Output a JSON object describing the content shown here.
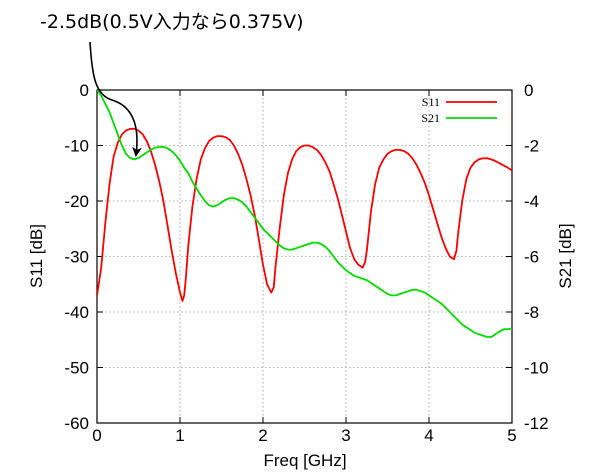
{
  "chart_data": {
    "type": "line",
    "annotation": "-2.5dB(0.5V入力なら0.375V)",
    "xlabel": "Freq [GHz]",
    "ylabel_left": "S11 [dB]",
    "ylabel_right": "S21 [dB]",
    "xlim": [
      0,
      5
    ],
    "ylim_left": [
      -60,
      0
    ],
    "ylim_right": [
      -12,
      0
    ],
    "x_ticks": [
      "0",
      "1",
      "2",
      "3",
      "4",
      "5"
    ],
    "y_ticks_left": [
      "0",
      "-10",
      "-20",
      "-30",
      "-40",
      "-50",
      "-60"
    ],
    "y_ticks_right": [
      "0",
      "-2",
      "-4",
      "-6",
      "-8",
      "-10",
      "-12"
    ],
    "grid": true,
    "legend": "top-right",
    "colors": {
      "S11": "#ff0000",
      "S21": "#00dd00"
    },
    "series": [
      {
        "name": "S11",
        "axis": "left",
        "x": [
          0,
          0.05,
          0.1,
          0.15,
          0.2,
          0.25,
          0.3,
          0.35,
          0.4,
          0.45,
          0.5,
          0.55,
          0.6,
          0.65,
          0.7,
          0.75,
          0.8,
          0.85,
          0.9,
          0.95,
          1.0,
          1.03,
          1.05,
          1.07,
          1.1,
          1.15,
          1.2,
          1.25,
          1.3,
          1.35,
          1.4,
          1.45,
          1.5,
          1.55,
          1.6,
          1.65,
          1.7,
          1.75,
          1.8,
          1.85,
          1.9,
          1.95,
          2.0,
          2.05,
          2.1,
          2.13,
          2.15,
          2.2,
          2.25,
          2.3,
          2.35,
          2.4,
          2.45,
          2.5,
          2.55,
          2.6,
          2.65,
          2.7,
          2.75,
          2.8,
          2.85,
          2.9,
          2.95,
          3.0,
          3.05,
          3.1,
          3.15,
          3.2,
          3.23,
          3.25,
          3.3,
          3.35,
          3.4,
          3.45,
          3.5,
          3.55,
          3.6,
          3.65,
          3.7,
          3.75,
          3.8,
          3.85,
          3.9,
          3.95,
          4.0,
          4.05,
          4.1,
          4.15,
          4.2,
          4.25,
          4.3,
          4.33,
          4.35,
          4.4,
          4.45,
          4.5,
          4.55,
          4.6,
          4.65,
          4.7,
          4.75,
          4.8,
          4.85,
          4.9,
          4.95,
          5.0
        ],
        "y": [
          -37,
          -32,
          -24,
          -17,
          -12,
          -9.5,
          -8,
          -7.3,
          -7,
          -7,
          -7.3,
          -8,
          -9.2,
          -11,
          -13.5,
          -16.5,
          -20,
          -24.5,
          -29,
          -33,
          -36.5,
          -38,
          -37,
          -34,
          -28,
          -21,
          -16,
          -12.5,
          -10.5,
          -9.2,
          -8.6,
          -8.3,
          -8.3,
          -8.5,
          -9,
          -10,
          -11.5,
          -13.5,
          -16,
          -19,
          -22.5,
          -27,
          -31.5,
          -35,
          -36.5,
          -35.5,
          -32,
          -25,
          -19,
          -15,
          -12.5,
          -11,
          -10.3,
          -10,
          -10,
          -10.3,
          -10.8,
          -11.7,
          -13,
          -14.6,
          -17,
          -19.5,
          -22.5,
          -25.5,
          -28.5,
          -30.5,
          -31.5,
          -32,
          -31,
          -29,
          -22,
          -17,
          -14,
          -12.5,
          -11.5,
          -11,
          -10.8,
          -10.8,
          -11,
          -11.5,
          -12.3,
          -13.5,
          -15,
          -16.8,
          -19,
          -21.5,
          -24,
          -26.5,
          -28.5,
          -30,
          -30.5,
          -29,
          -26,
          -20,
          -16,
          -14,
          -13,
          -12.5,
          -12.3,
          -12.3,
          -12.5,
          -12.8,
          -13.2,
          -13.6,
          -14,
          -14.5
        ]
      },
      {
        "name": "S21",
        "axis": "right",
        "x": [
          0,
          0.05,
          0.1,
          0.15,
          0.2,
          0.25,
          0.3,
          0.35,
          0.4,
          0.45,
          0.5,
          0.55,
          0.6,
          0.65,
          0.7,
          0.75,
          0.8,
          0.85,
          0.9,
          0.95,
          1.0,
          1.05,
          1.1,
          1.15,
          1.2,
          1.25,
          1.3,
          1.35,
          1.4,
          1.45,
          1.5,
          1.55,
          1.6,
          1.65,
          1.7,
          1.75,
          1.8,
          1.85,
          1.9,
          1.95,
          2.0,
          2.05,
          2.1,
          2.15,
          2.2,
          2.25,
          2.3,
          2.35,
          2.4,
          2.45,
          2.5,
          2.55,
          2.6,
          2.65,
          2.7,
          2.75,
          2.8,
          2.85,
          2.9,
          2.95,
          3.0,
          3.05,
          3.1,
          3.15,
          3.2,
          3.25,
          3.3,
          3.35,
          3.4,
          3.45,
          3.5,
          3.55,
          3.6,
          3.65,
          3.7,
          3.75,
          3.8,
          3.85,
          3.9,
          3.95,
          4.0,
          4.05,
          4.1,
          4.15,
          4.2,
          4.25,
          4.3,
          4.35,
          4.4,
          4.45,
          4.5,
          4.55,
          4.6,
          4.65,
          4.7,
          4.75,
          4.8,
          4.85,
          4.9,
          4.95,
          5.0
        ],
        "y": [
          0,
          -0.2,
          -0.5,
          -0.8,
          -1.2,
          -1.6,
          -2.0,
          -2.3,
          -2.45,
          -2.5,
          -2.45,
          -2.35,
          -2.25,
          -2.15,
          -2.08,
          -2.05,
          -2.05,
          -2.1,
          -2.2,
          -2.35,
          -2.55,
          -2.8,
          -3.0,
          -3.3,
          -3.55,
          -3.8,
          -4.0,
          -4.15,
          -4.2,
          -4.15,
          -4.05,
          -3.95,
          -3.9,
          -3.9,
          -3.95,
          -4.05,
          -4.2,
          -4.4,
          -4.6,
          -4.8,
          -5.0,
          -5.15,
          -5.3,
          -5.45,
          -5.6,
          -5.7,
          -5.75,
          -5.75,
          -5.7,
          -5.65,
          -5.6,
          -5.55,
          -5.5,
          -5.5,
          -5.55,
          -5.65,
          -5.8,
          -6.0,
          -6.2,
          -6.35,
          -6.5,
          -6.6,
          -6.7,
          -6.75,
          -6.8,
          -6.85,
          -6.95,
          -7.05,
          -7.15,
          -7.25,
          -7.35,
          -7.4,
          -7.4,
          -7.35,
          -7.3,
          -7.25,
          -7.2,
          -7.2,
          -7.25,
          -7.3,
          -7.4,
          -7.5,
          -7.6,
          -7.7,
          -7.85,
          -8.0,
          -8.15,
          -8.3,
          -8.45,
          -8.55,
          -8.65,
          -8.75,
          -8.8,
          -8.85,
          -8.9,
          -8.9,
          -8.8,
          -8.7,
          -8.62,
          -8.62,
          -8.6
        ]
      }
    ]
  }
}
